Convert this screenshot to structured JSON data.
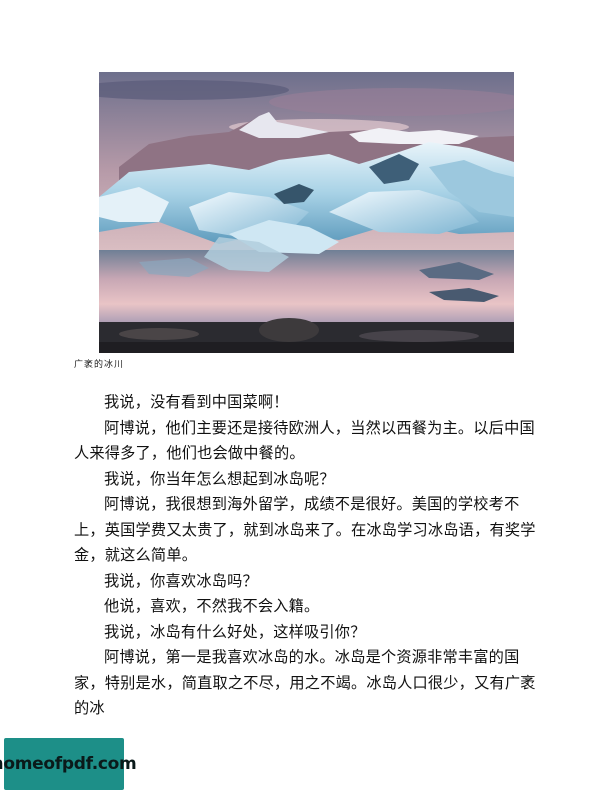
{
  "figure": {
    "caption": "广袤的冰川"
  },
  "paragraphs": [
    "我说，没有看到中国菜啊！",
    "阿博说，他们主要还是接待欧洲人，当然以西餐为主。以后中国人来得多了，他们也会做中餐的。",
    "我说，你当年怎么想起到冰岛呢？",
    "阿博说，我很想到海外留学，成绩不是很好。美国的学校考不上，英国学费又太贵了，就到冰岛来了。在冰岛学习冰岛语，有奖学金，就这么简单。",
    "我说，你喜欢冰岛吗？",
    "他说，喜欢，不然我不会入籍。",
    "我说，冰岛有什么好处，这样吸引你？",
    "阿博说，第一是我喜欢冰岛的水。冰岛是个资源非常丰富的国家，特别是水，简直取之不尽，用之不竭。冰岛人口很少，又有广袤的冰"
  ],
  "watermark": {
    "text": "homeofpdf.com",
    "background": "#1d8f88"
  }
}
